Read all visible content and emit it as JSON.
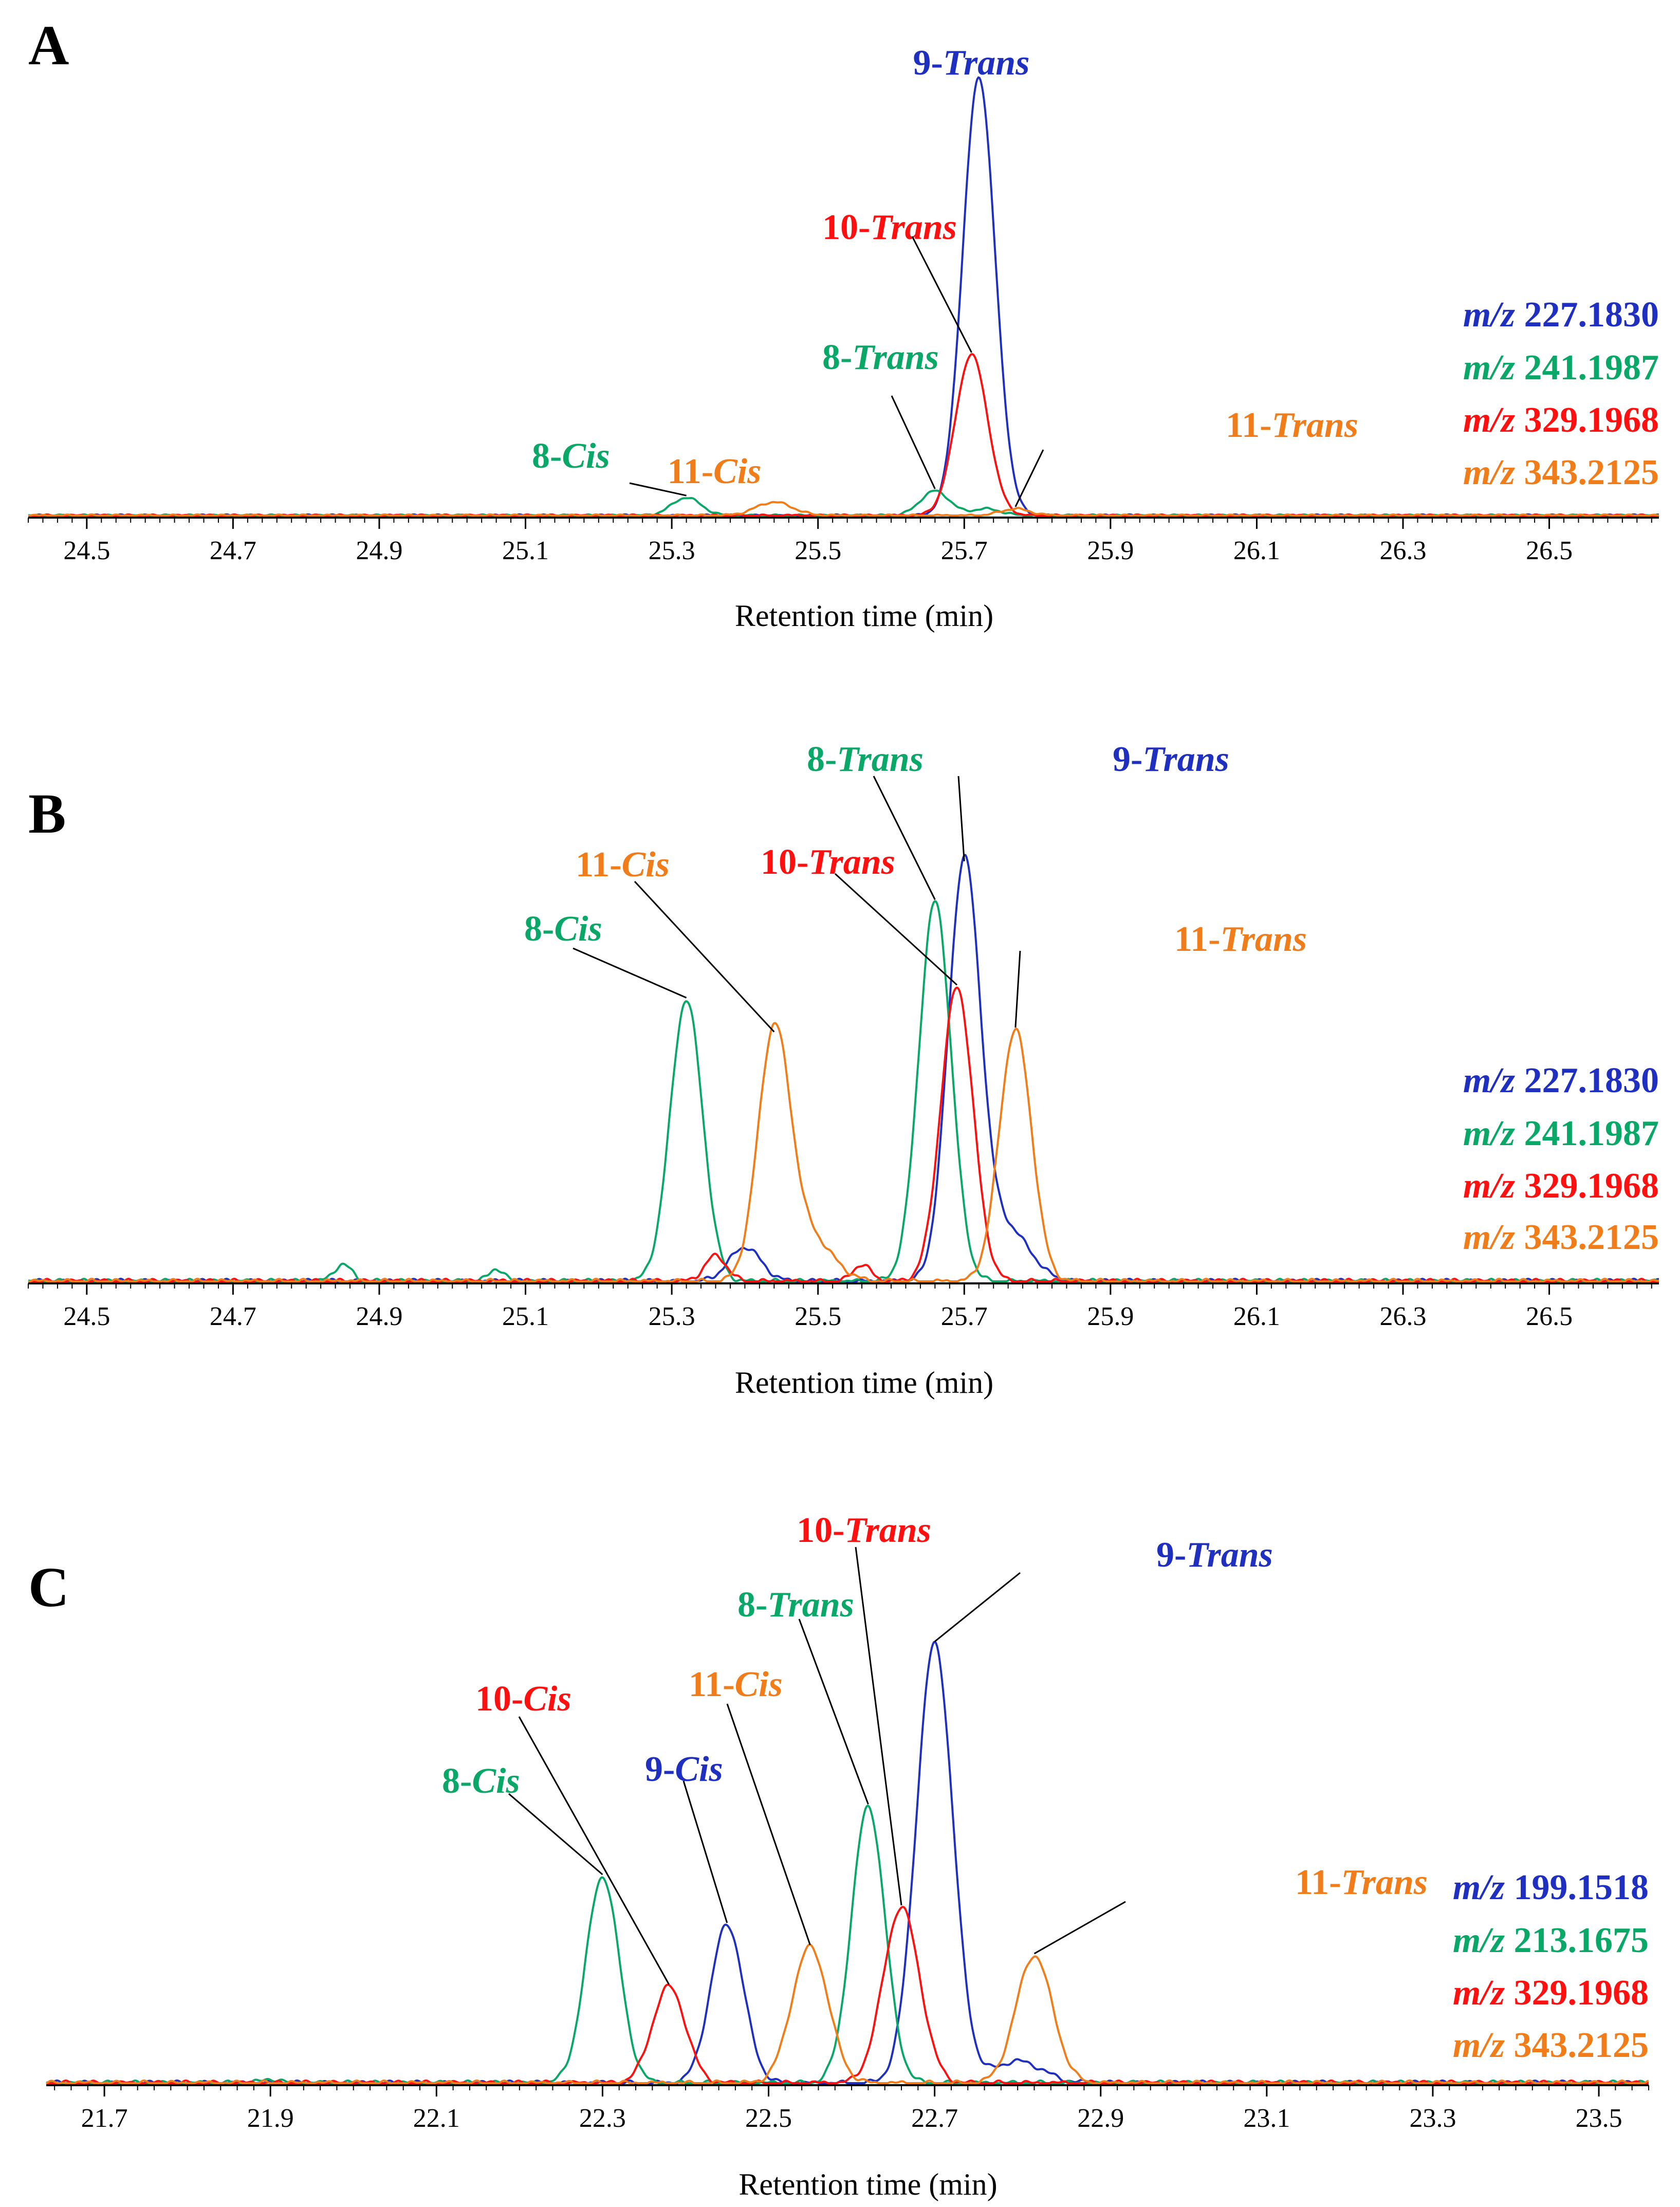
{
  "colors": {
    "blue": "#1f2fbf",
    "green": "#0aa868",
    "red": "#ff1010",
    "orange": "#f07d1a"
  },
  "chart_data": [
    {
      "type": "line",
      "panel": "A",
      "xlabel": "Retention time (min)",
      "ylabel": "",
      "xlim": [
        24.42,
        26.65
      ],
      "ylim": [
        0,
        100
      ],
      "grid": false,
      "xticks": [
        "24.5",
        "24.7",
        "24.9",
        "25.1",
        "25.3",
        "25.5",
        "25.7",
        "25.9",
        "26.1",
        "26.3",
        "26.5"
      ],
      "legend": [
        {
          "prefix": "m/z",
          "value": "227.1830",
          "color": "blue"
        },
        {
          "prefix": "m/z",
          "value": "241.1987",
          "color": "green"
        },
        {
          "prefix": "m/z",
          "value": "329.1968",
          "color": "red"
        },
        {
          "prefix": "m/z",
          "value": "343.2125",
          "color": "orange"
        }
      ],
      "series": [
        {
          "name": "m/z 227.1830",
          "color": "blue",
          "peaks": [
            {
              "rt": 25.72,
              "height": 98,
              "width": 0.022
            }
          ]
        },
        {
          "name": "m/z 241.1987",
          "color": "green",
          "peaks": [
            {
              "rt": 25.32,
              "height": 4,
              "width": 0.02
            },
            {
              "rt": 25.66,
              "height": 5.5,
              "width": 0.02
            },
            {
              "rt": 25.73,
              "height": 1.5,
              "width": 0.02
            }
          ]
        },
        {
          "name": "m/z 329.1968",
          "color": "red",
          "peaks": [
            {
              "rt": 25.71,
              "height": 36,
              "width": 0.022
            }
          ]
        },
        {
          "name": "m/z 343.2125",
          "color": "orange",
          "peaks": [
            {
              "rt": 25.44,
              "height": 3,
              "width": 0.025
            },
            {
              "rt": 25.77,
              "height": 1.5,
              "width": 0.02
            }
          ]
        }
      ],
      "annotations": [
        {
          "num": "8",
          "name": "Cis",
          "color": "green",
          "rt": 25.32,
          "height": 4
        },
        {
          "num": "11",
          "name": "Cis",
          "color": "orange",
          "rt": 25.44,
          "height": 3
        },
        {
          "num": "8",
          "name": "Trans",
          "color": "green",
          "rt": 25.66,
          "height": 5.5
        },
        {
          "num": "10",
          "name": "Trans",
          "color": "red",
          "rt": 25.71,
          "height": 36
        },
        {
          "num": "9",
          "name": "Trans",
          "color": "blue",
          "rt": 25.72,
          "height": 98
        },
        {
          "num": "11",
          "name": "Trans",
          "color": "orange",
          "rt": 25.77,
          "height": 1.5
        }
      ]
    },
    {
      "type": "line",
      "panel": "B",
      "xlabel": "Retention time (min)",
      "ylabel": "",
      "xlim": [
        24.42,
        26.65
      ],
      "ylim": [
        0,
        100
      ],
      "grid": false,
      "xticks": [
        "24.5",
        "24.7",
        "24.9",
        "25.1",
        "25.3",
        "25.5",
        "25.7",
        "25.9",
        "26.1",
        "26.3",
        "26.5"
      ],
      "legend": [
        {
          "prefix": "m/z",
          "value": "227.1830",
          "color": "blue"
        },
        {
          "prefix": "m/z",
          "value": "241.1987",
          "color": "green"
        },
        {
          "prefix": "m/z",
          "value": "329.1968",
          "color": "red"
        },
        {
          "prefix": "m/z",
          "value": "343.2125",
          "color": "orange"
        }
      ],
      "series": [
        {
          "name": "m/z 227.1830",
          "color": "blue",
          "peaks": [
            {
              "rt": 25.4,
              "height": 8,
              "width": 0.022
            },
            {
              "rt": 25.7,
              "height": 98,
              "width": 0.022
            },
            {
              "rt": 25.76,
              "height": 12,
              "width": 0.03
            }
          ]
        },
        {
          "name": "m/z 241.1987",
          "color": "green",
          "peaks": [
            {
              "rt": 24.85,
              "height": 4,
              "width": 0.012
            },
            {
              "rt": 25.06,
              "height": 3,
              "width": 0.01
            },
            {
              "rt": 25.32,
              "height": 66,
              "width": 0.022
            },
            {
              "rt": 25.66,
              "height": 89,
              "width": 0.022
            }
          ]
        },
        {
          "name": "m/z 329.1968",
          "color": "red",
          "peaks": [
            {
              "rt": 25.36,
              "height": 6,
              "width": 0.015
            },
            {
              "rt": 25.56,
              "height": 4,
              "width": 0.012
            },
            {
              "rt": 25.69,
              "height": 69,
              "width": 0.022
            }
          ]
        },
        {
          "name": "m/z 343.2125",
          "color": "orange",
          "peaks": [
            {
              "rt": 25.44,
              "height": 58,
              "width": 0.022
            },
            {
              "rt": 25.49,
              "height": 10,
              "width": 0.03
            },
            {
              "rt": 25.77,
              "height": 59,
              "width": 0.022
            }
          ]
        }
      ],
      "annotations": [
        {
          "num": "8",
          "name": "Cis",
          "color": "green",
          "rt": 25.32,
          "height": 66
        },
        {
          "num": "11",
          "name": "Cis",
          "color": "orange",
          "rt": 25.44,
          "height": 58
        },
        {
          "num": "10",
          "name": "Trans",
          "color": "red",
          "rt": 25.69,
          "height": 69
        },
        {
          "num": "8",
          "name": "Trans",
          "color": "green",
          "rt": 25.66,
          "height": 89
        },
        {
          "num": "9",
          "name": "Trans",
          "color": "blue",
          "rt": 25.7,
          "height": 98
        },
        {
          "num": "11",
          "name": "Trans",
          "color": "orange",
          "rt": 25.77,
          "height": 59
        }
      ]
    },
    {
      "type": "line",
      "panel": "C",
      "xlabel": "Retention time (min)",
      "ylabel": "",
      "xlim": [
        21.63,
        23.56
      ],
      "ylim": [
        0,
        100
      ],
      "grid": false,
      "xticks": [
        "21.7",
        "21.9",
        "22.1",
        "22.3",
        "22.5",
        "22.7",
        "22.9",
        "23.1",
        "23.3",
        "23.5"
      ],
      "legend": [
        {
          "prefix": "m/z",
          "value": "199.1518",
          "color": "blue"
        },
        {
          "prefix": "m/z",
          "value": "213.1675",
          "color": "green"
        },
        {
          "prefix": "m/z",
          "value": "329.1968",
          "color": "red"
        },
        {
          "prefix": "m/z",
          "value": "343.2125",
          "color": "orange"
        }
      ],
      "series": [
        {
          "name": "m/z 199.1518",
          "color": "blue",
          "peaks": [
            {
              "rt": 22.45,
              "height": 36,
              "width": 0.02
            },
            {
              "rt": 22.7,
              "height": 100,
              "width": 0.022
            },
            {
              "rt": 22.8,
              "height": 5,
              "width": 0.03
            }
          ]
        },
        {
          "name": "m/z 213.1675",
          "color": "green",
          "peaks": [
            {
              "rt": 21.9,
              "height": 1,
              "width": 0.01
            },
            {
              "rt": 22.3,
              "height": 47,
              "width": 0.02
            },
            {
              "rt": 22.62,
              "height": 63,
              "width": 0.02
            }
          ]
        },
        {
          "name": "m/z 329.1968",
          "color": "red",
          "peaks": [
            {
              "rt": 22.38,
              "height": 22,
              "width": 0.02
            },
            {
              "rt": 22.66,
              "height": 40,
              "width": 0.022
            }
          ]
        },
        {
          "name": "m/z 343.2125",
          "color": "orange",
          "peaks": [
            {
              "rt": 22.55,
              "height": 31,
              "width": 0.022
            },
            {
              "rt": 22.82,
              "height": 29,
              "width": 0.022
            }
          ]
        }
      ],
      "annotations": [
        {
          "num": "8",
          "name": "Cis",
          "color": "green",
          "rt": 22.3,
          "height": 47
        },
        {
          "num": "10",
          "name": "Cis",
          "color": "red",
          "rt": 22.38,
          "height": 22
        },
        {
          "num": "9",
          "name": "Cis",
          "color": "blue",
          "rt": 22.45,
          "height": 36
        },
        {
          "num": "11",
          "name": "Cis",
          "color": "orange",
          "rt": 22.55,
          "height": 31
        },
        {
          "num": "8",
          "name": "Trans",
          "color": "green",
          "rt": 22.62,
          "height": 63
        },
        {
          "num": "10",
          "name": "Trans",
          "color": "red",
          "rt": 22.66,
          "height": 40
        },
        {
          "num": "9",
          "name": "Trans",
          "color": "blue",
          "rt": 22.7,
          "height": 100
        },
        {
          "num": "11",
          "name": "Trans",
          "color": "orange",
          "rt": 22.82,
          "height": 29
        }
      ]
    }
  ]
}
